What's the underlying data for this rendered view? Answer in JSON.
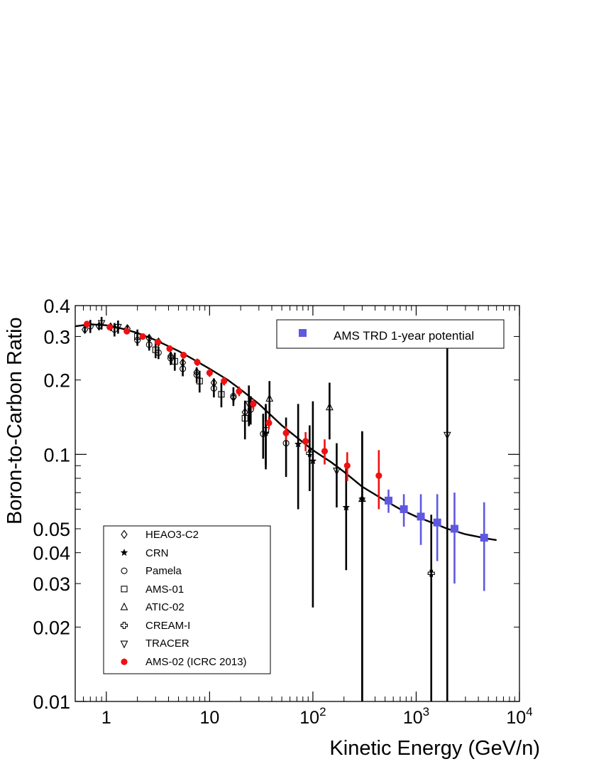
{
  "chart_data": {
    "type": "scatter",
    "title": "",
    "xlabel": "Kinetic Energy (GeV/n)",
    "ylabel": "Boron-to-Carbon Ratio",
    "x_scale": "log",
    "y_scale": "log",
    "xlim": [
      0.5,
      10000
    ],
    "ylim": [
      0.01,
      0.4
    ],
    "x_ticks": [
      {
        "value": 1,
        "base": "1",
        "exp": ""
      },
      {
        "value": 10,
        "base": "10",
        "exp": ""
      },
      {
        "value": 100,
        "base": "10",
        "exp": "2"
      },
      {
        "value": 1000,
        "base": "10",
        "exp": "3"
      },
      {
        "value": 10000,
        "base": "10",
        "exp": "4"
      }
    ],
    "y_ticks": [
      {
        "value": 0.01,
        "label": "0.01"
      },
      {
        "value": 0.02,
        "label": "0.02"
      },
      {
        "value": 0.03,
        "label": "0.03"
      },
      {
        "value": 0.04,
        "label": "0.04"
      },
      {
        "value": 0.05,
        "label": "0.05"
      },
      {
        "value": 0.1,
        "label": "0.1"
      },
      {
        "value": 0.2,
        "label": "0.2"
      },
      {
        "value": 0.3,
        "label": "0.3"
      },
      {
        "value": 0.4,
        "label": "0.4"
      }
    ],
    "legend_top": {
      "position": "top-right",
      "entries": [
        "AMS TRD 1-year potential"
      ]
    },
    "legend_bottom": {
      "position": "bottom-left",
      "entries": [
        "HEAO3-C2",
        "CRN",
        "Pamela",
        "AMS-01",
        "ATIC-02",
        "CREAM-I",
        "TRACER",
        "AMS-02 (ICRC 2013)"
      ]
    },
    "model_curve": {
      "points": [
        [
          0.5,
          0.33
        ],
        [
          0.7,
          0.336
        ],
        [
          1,
          0.333
        ],
        [
          1.5,
          0.321
        ],
        [
          2,
          0.31
        ],
        [
          3,
          0.29
        ],
        [
          5,
          0.262
        ],
        [
          7,
          0.242
        ],
        [
          10,
          0.222
        ],
        [
          15,
          0.2
        ],
        [
          20,
          0.183
        ],
        [
          30,
          0.16
        ],
        [
          50,
          0.131
        ],
        [
          70,
          0.117
        ],
        [
          100,
          0.104
        ],
        [
          150,
          0.093
        ],
        [
          200,
          0.085
        ],
        [
          300,
          0.074
        ],
        [
          500,
          0.065
        ],
        [
          700,
          0.06
        ],
        [
          1000,
          0.056
        ],
        [
          1500,
          0.0525
        ],
        [
          2000,
          0.05
        ],
        [
          3000,
          0.0475
        ],
        [
          5000,
          0.0455
        ],
        [
          6000,
          0.045
        ]
      ]
    },
    "series": [
      {
        "name": "HEAO3-C2",
        "marker": "diamond",
        "color": "#000000",
        "points": [
          [
            0.62,
            0.32,
            0.01
          ],
          [
            0.85,
            0.33,
            0.01
          ],
          [
            1.1,
            0.328,
            0.01
          ],
          [
            1.6,
            0.323,
            0.01
          ],
          [
            2.6,
            0.295,
            0.01
          ],
          [
            3.2,
            0.285,
            0.01
          ],
          [
            4.2,
            0.25,
            0.008
          ],
          [
            5.5,
            0.235,
            0.008
          ],
          [
            7.5,
            0.215,
            0.008
          ],
          [
            11,
            0.195,
            0.008
          ],
          [
            17,
            0.17,
            0.008
          ],
          [
            22,
            0.148,
            0.008
          ]
        ]
      },
      {
        "name": "CRN",
        "marker": "star",
        "color": "#000000",
        "points": [
          [
            35,
            0.122,
            0.035
          ],
          [
            72,
            0.11,
            0.05
          ],
          [
            100,
            0.094,
            0.07
          ],
          [
            210,
            0.061,
            0.027
          ],
          [
            300,
            0.066,
            0.058
          ]
        ]
      },
      {
        "name": "Pamela",
        "marker": "circle",
        "color": "#000000",
        "points": [
          [
            0.7,
            0.33,
            0.02
          ],
          [
            1.2,
            0.32,
            0.02
          ],
          [
            2.0,
            0.29,
            0.015
          ],
          [
            2.6,
            0.278,
            0.015
          ],
          [
            3.2,
            0.258,
            0.015
          ],
          [
            4.2,
            0.245,
            0.015
          ],
          [
            5.5,
            0.222,
            0.015
          ],
          [
            7.5,
            0.21,
            0.015
          ],
          [
            11,
            0.185,
            0.015
          ],
          [
            17,
            0.172,
            0.015
          ],
          [
            25,
            0.152,
            0.02
          ],
          [
            33,
            0.121,
            0.025
          ],
          [
            55,
            0.111,
            0.03
          ]
        ]
      },
      {
        "name": "AMS-01",
        "marker": "square",
        "color": "#000000",
        "points": [
          [
            2.0,
            0.3,
            0.02
          ],
          [
            3.0,
            0.265,
            0.02
          ],
          [
            4.6,
            0.238,
            0.02
          ],
          [
            8.0,
            0.198,
            0.02
          ],
          [
            13,
            0.175,
            0.02
          ],
          [
            22,
            0.14,
            0.025
          ],
          [
            35,
            0.125,
            0.035
          ]
        ]
      },
      {
        "name": "ATIC-02",
        "marker": "triangle",
        "color": "#000000",
        "points": [
          [
            38,
            0.168,
            0.03
          ],
          [
            145,
            0.155,
            0.04
          ],
          [
            300,
            0.066,
            0.058
          ]
        ]
      },
      {
        "name": "CREAM-I",
        "marker": "cross",
        "color": "#000000",
        "points": [
          [
            93,
            0.101,
            0.03
          ],
          [
            1400,
            0.033,
            0.024
          ]
        ]
      },
      {
        "name": "TRACER",
        "marker": "triangle-down",
        "color": "#000000",
        "points": [
          [
            0.9,
            0.34,
            0.02
          ],
          [
            1.3,
            0.328,
            0.02
          ],
          [
            24,
            0.16,
            0.03
          ],
          [
            170,
            0.086,
            0.025
          ],
          [
            2000,
            0.12,
            0.15
          ]
        ]
      },
      {
        "name": "AMS-02 (ICRC 2013)",
        "marker": "dot",
        "color": "#ee1111",
        "points": [
          [
            0.65,
            0.337,
            0.008
          ],
          [
            1.08,
            0.327,
            0.008
          ],
          [
            1.58,
            0.315,
            0.008
          ],
          [
            2.25,
            0.3,
            0.008
          ],
          [
            3.15,
            0.285,
            0.008
          ],
          [
            4.1,
            0.268,
            0.008
          ],
          [
            5.6,
            0.252,
            0.008
          ],
          [
            7.6,
            0.236,
            0.008
          ],
          [
            10,
            0.214,
            0.008
          ],
          [
            13.8,
            0.198,
            0.008
          ],
          [
            19.3,
            0.18,
            0.008
          ],
          [
            26.5,
            0.16,
            0.008
          ],
          [
            37.5,
            0.134,
            0.008
          ],
          [
            55,
            0.122,
            0.008
          ],
          [
            85,
            0.113,
            0.01
          ],
          [
            130,
            0.103,
            0.012
          ],
          [
            215,
            0.09,
            0.012
          ],
          [
            435,
            0.082,
            0.022
          ]
        ]
      },
      {
        "name": "AMS TRD 1-year potential",
        "marker": "square-filled",
        "color": "#5f58e0",
        "points": [
          [
            540,
            0.065,
            0.007
          ],
          [
            760,
            0.06,
            0.009
          ],
          [
            1110,
            0.056,
            0.013
          ],
          [
            1600,
            0.053,
            0.016
          ],
          [
            2350,
            0.05,
            0.02
          ],
          [
            4550,
            0.046,
            0.018
          ]
        ]
      }
    ]
  }
}
